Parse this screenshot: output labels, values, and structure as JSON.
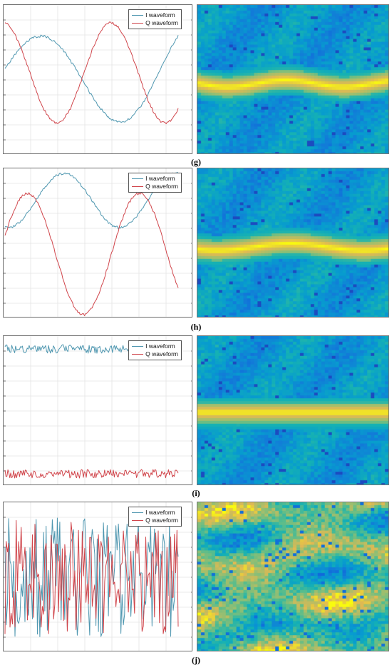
{
  "legend": {
    "i_label": "I waveform",
    "q_label": "Q waveform",
    "i_color": "#4f97b0",
    "q_color": "#d0454b"
  },
  "colormap": "parula",
  "chart_data": [
    {
      "panel": "(g)",
      "type": "line",
      "signal": "smooth-sinusoidal",
      "legend": [
        "I waveform",
        "Q waveform"
      ],
      "spectrogram": {
        "band": "single",
        "band_wobble": "moderate"
      }
    },
    {
      "panel": "(h)",
      "type": "line",
      "signal": "smooth-sinusoidal",
      "legend": [
        "I waveform",
        "Q waveform"
      ],
      "spectrogram": {
        "band": "single",
        "band_wobble": "moderate"
      }
    },
    {
      "panel": "(i)",
      "type": "line",
      "signal": "constant-with-noise",
      "legend": [
        "I waveform",
        "Q waveform"
      ],
      "spectrogram": {
        "band": "single",
        "band_wobble": "none"
      }
    },
    {
      "panel": "(j)",
      "type": "line",
      "signal": "random-oscillation",
      "legend": [
        "I waveform",
        "Q waveform"
      ],
      "spectrogram": {
        "band": "broadband",
        "band_wobble": "high"
      }
    }
  ]
}
